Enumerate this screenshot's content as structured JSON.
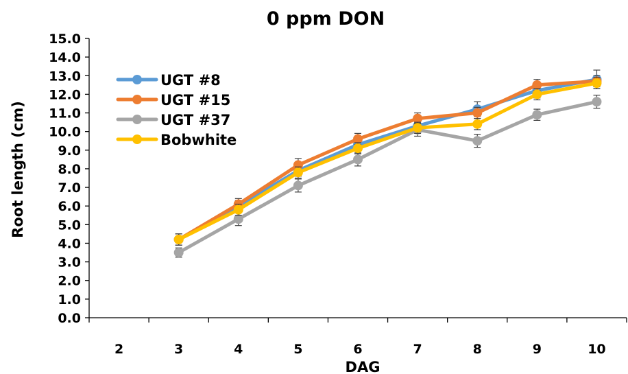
{
  "chart_data": {
    "type": "line",
    "title": "0 ppm DON",
    "xlabel": "DAG",
    "ylabel": "Root length (cm)",
    "categories": [
      "2",
      "3",
      "4",
      "5",
      "6",
      "7",
      "8",
      "9",
      "10"
    ],
    "ylim": [
      0,
      15
    ],
    "yticks": [
      "0.0",
      "1.0",
      "2.0",
      "3.0",
      "4.0",
      "5.0",
      "6.0",
      "7.0",
      "8.0",
      "9.0",
      "10.0",
      "11.0",
      "12.0",
      "13.0",
      "14.0",
      "15.0"
    ],
    "grid": false,
    "legend_position": "top-left",
    "series": [
      {
        "name": "UGT #8",
        "color": "#5B9BD5",
        "values": [
          null,
          4.2,
          6.0,
          7.9,
          9.3,
          10.3,
          11.2,
          12.2,
          12.8
        ],
        "errors": [
          null,
          0.3,
          0.3,
          0.3,
          0.3,
          0.3,
          0.4,
          0.4,
          0.5
        ]
      },
      {
        "name": "UGT #15",
        "color": "#ED7D31",
        "values": [
          null,
          4.2,
          6.1,
          8.2,
          9.6,
          10.7,
          11.0,
          12.5,
          12.7
        ],
        "errors": [
          null,
          0.3,
          0.3,
          0.35,
          0.3,
          0.3,
          0.3,
          0.3,
          0.3
        ]
      },
      {
        "name": "UGT #37",
        "color": "#A5A5A5",
        "values": [
          null,
          3.5,
          5.3,
          7.1,
          8.5,
          10.1,
          9.5,
          10.9,
          11.6
        ],
        "errors": [
          null,
          0.25,
          0.35,
          0.35,
          0.35,
          0.35,
          0.35,
          0.3,
          0.35
        ]
      },
      {
        "name": "Bobwhite",
        "color": "#FFC000",
        "values": [
          null,
          4.2,
          5.8,
          7.8,
          9.1,
          10.2,
          10.4,
          12.0,
          12.6
        ],
        "errors": [
          null,
          0.3,
          0.3,
          0.3,
          0.3,
          0.3,
          0.3,
          0.3,
          0.3
        ]
      }
    ]
  }
}
